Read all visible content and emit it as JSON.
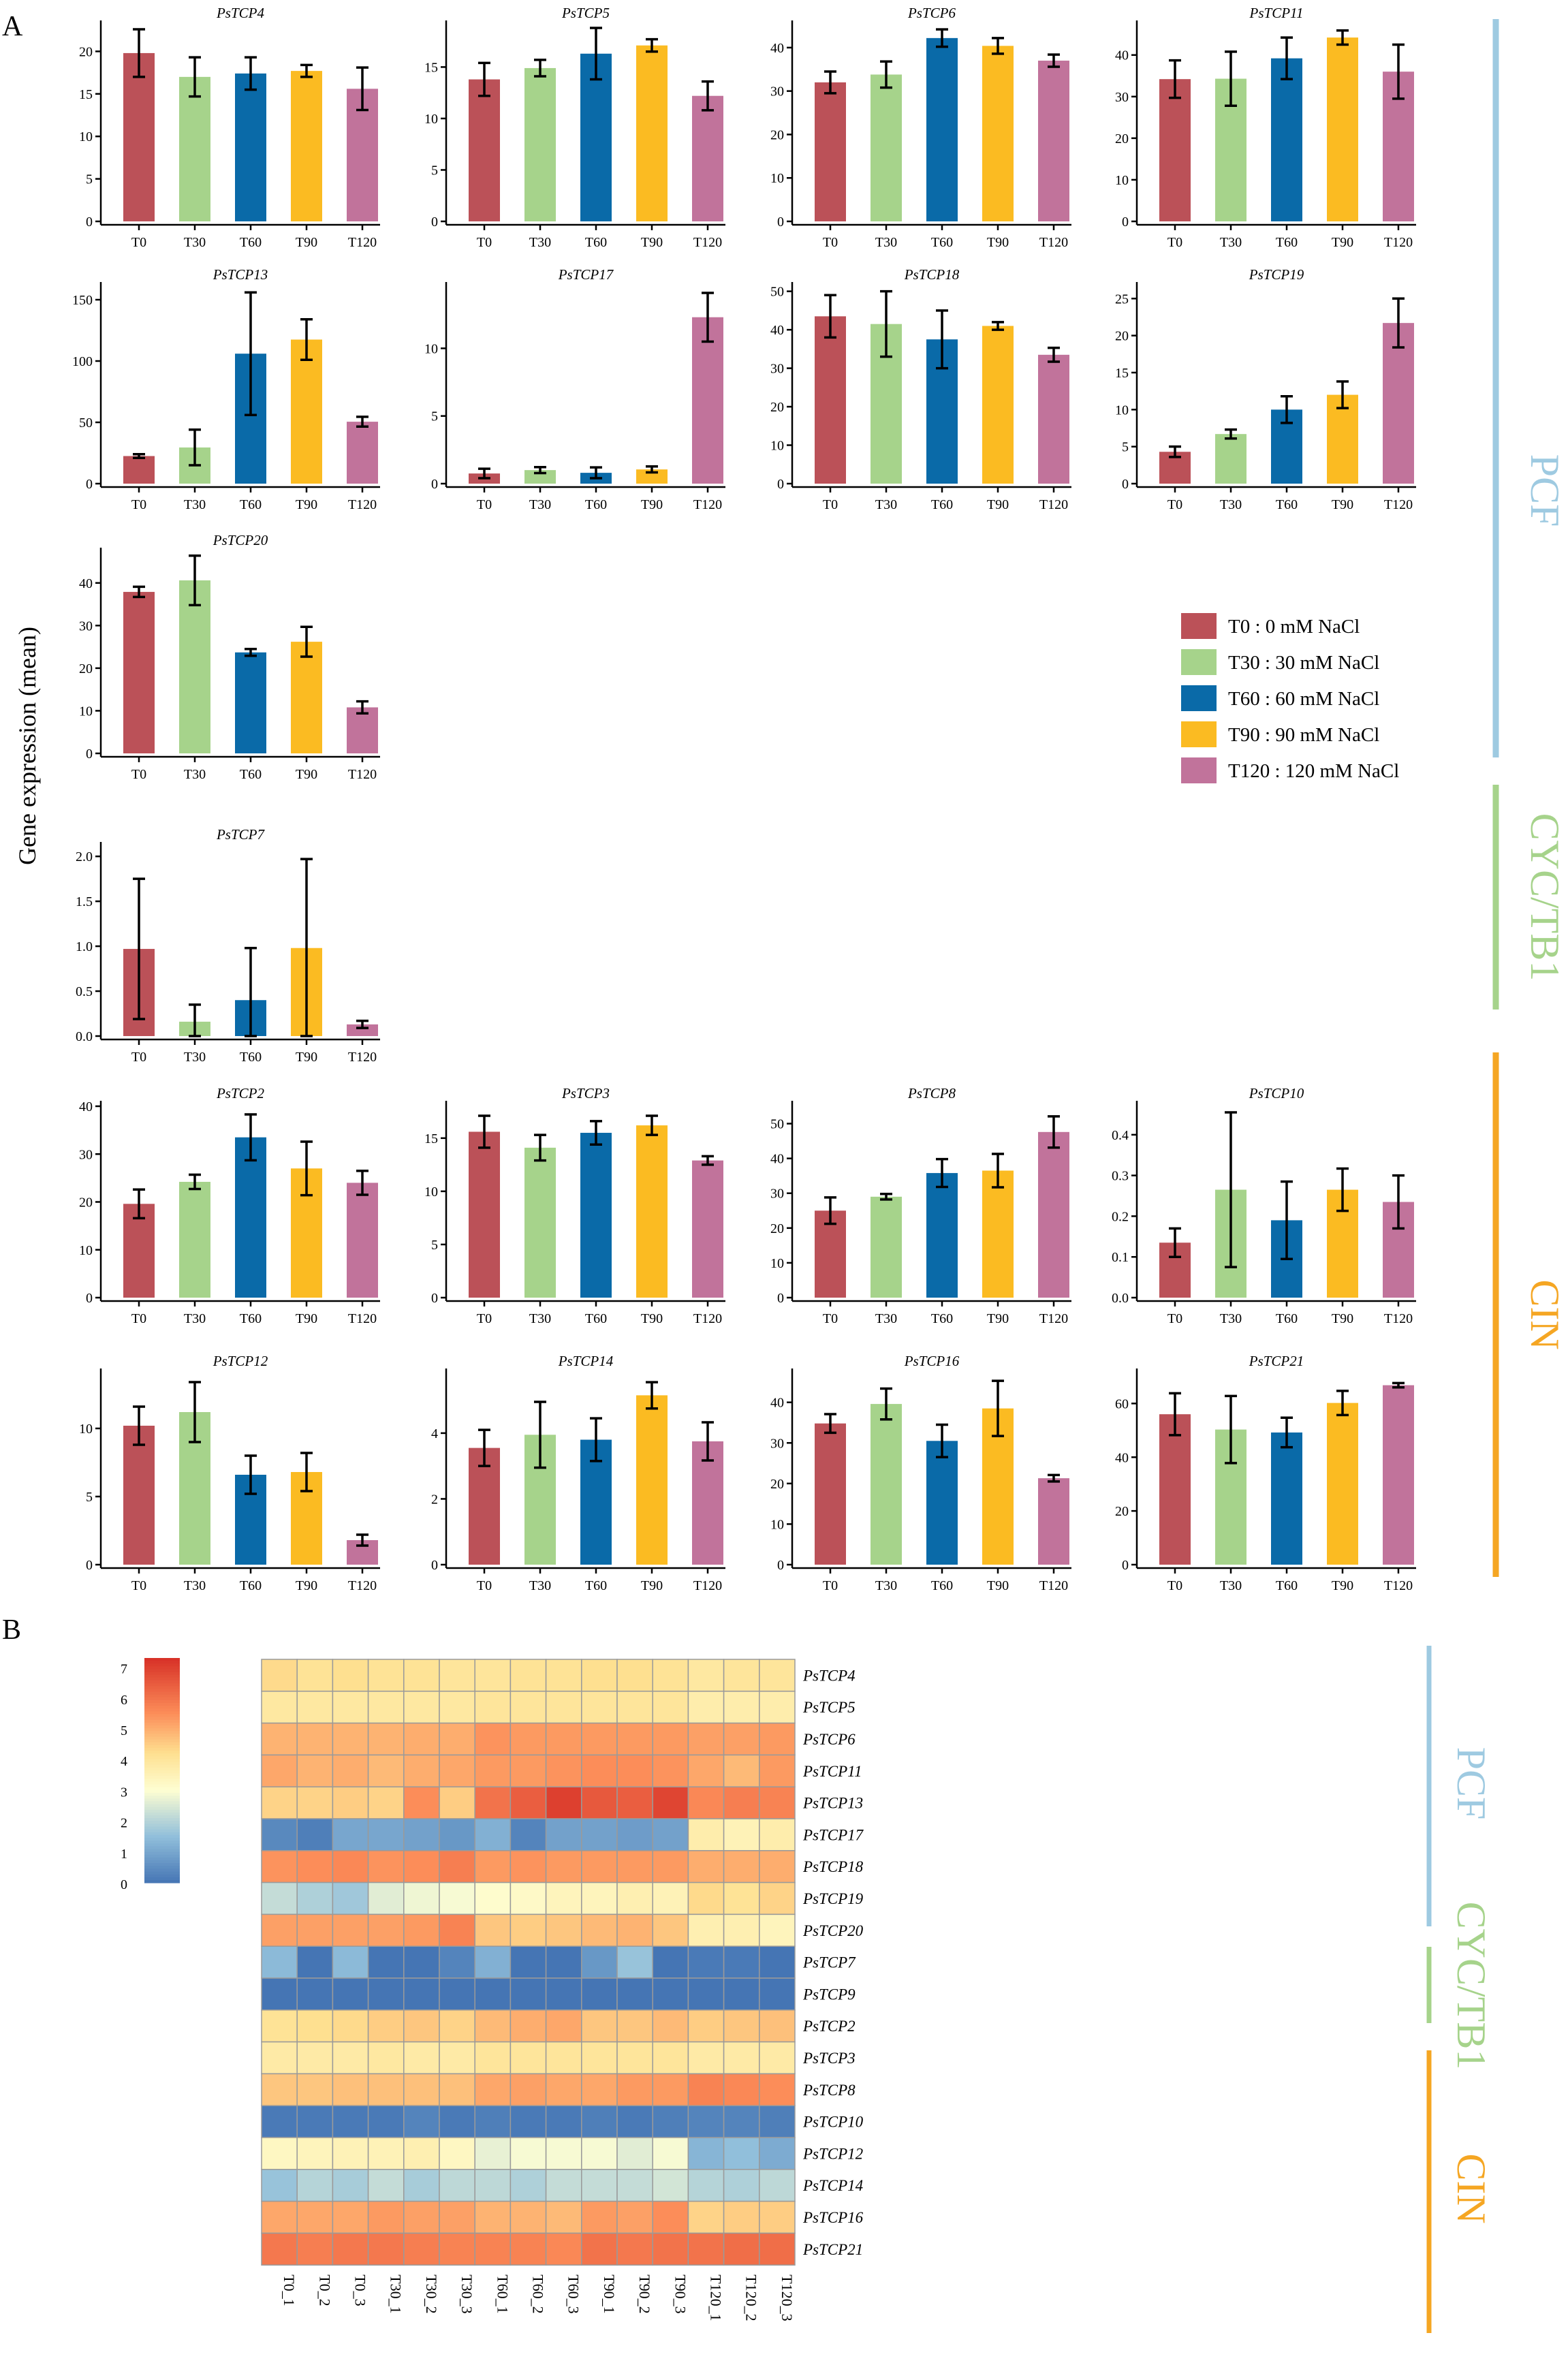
{
  "panel_labels": {
    "a": "A",
    "b": "B"
  },
  "y_axis_label": "Gene expression (mean)",
  "colors": {
    "T0": "#bb5158",
    "T30": "#a6d38b",
    "T60": "#0a6aa8",
    "T90": "#fbbb22",
    "T120": "#c1739b",
    "PCF": "#9ecae1",
    "CYC/TB1": "#a6d38b",
    "CIN": "#f5a623"
  },
  "legend": [
    {
      "key": "T0",
      "label": "T0 : 0 mM NaCl"
    },
    {
      "key": "T30",
      "label": "T30 : 30 mM NaCl"
    },
    {
      "key": "T60",
      "label": "T60 : 60 mM NaCl"
    },
    {
      "key": "T90",
      "label": "T90 : 90 mM NaCl"
    },
    {
      "key": "T120",
      "label": "T120 : 120 mM NaCl"
    }
  ],
  "groups_a": [
    {
      "name": "PCF",
      "color": "#9ecae1"
    },
    {
      "name": "CYC/TB1",
      "color": "#a6d38b"
    },
    {
      "name": "CIN",
      "color": "#f5a623"
    }
  ],
  "groups_b": [
    {
      "name": "PCF",
      "color": "#9ecae1"
    },
    {
      "name": "CYC/TB1",
      "color": "#a6d38b"
    },
    {
      "name": "CIN",
      "color": "#f5a623"
    }
  ],
  "chart_data": [
    {
      "type": "bar",
      "title": "PsTCP4",
      "categories": [
        "T0",
        "T30",
        "T60",
        "T90",
        "T120"
      ],
      "values": [
        19.8,
        17.0,
        17.4,
        17.7,
        15.6
      ],
      "errors": [
        2.8,
        2.3,
        1.9,
        0.7,
        2.5
      ],
      "ylim": [
        0,
        23
      ],
      "yticks": [
        "0",
        "5",
        "10",
        "15",
        "20"
      ]
    },
    {
      "type": "bar",
      "title": "PsTCP5",
      "categories": [
        "T0",
        "T30",
        "T60",
        "T90",
        "T120"
      ],
      "values": [
        13.8,
        14.9,
        16.3,
        17.1,
        12.2
      ],
      "errors": [
        1.6,
        0.8,
        2.5,
        0.6,
        1.4
      ],
      "ylim": [
        0,
        19
      ],
      "yticks": [
        "0",
        "5",
        "10",
        "15"
      ]
    },
    {
      "type": "bar",
      "title": "PsTCP6",
      "categories": [
        "T0",
        "T30",
        "T60",
        "T90",
        "T120"
      ],
      "values": [
        32.0,
        33.8,
        42.2,
        40.4,
        37.0
      ],
      "errors": [
        2.5,
        3.0,
        2.0,
        1.8,
        1.4
      ],
      "ylim": [
        0,
        45
      ],
      "yticks": [
        "0",
        "10",
        "20",
        "30",
        "40"
      ]
    },
    {
      "type": "bar",
      "title": "PsTCP11",
      "categories": [
        "T0",
        "T30",
        "T60",
        "T90",
        "T120"
      ],
      "values": [
        34.2,
        34.3,
        39.2,
        44.2,
        36.0
      ],
      "errors": [
        4.5,
        6.5,
        5.0,
        1.7,
        6.5
      ],
      "ylim": [
        0,
        47
      ],
      "yticks": [
        "0",
        "10",
        "20",
        "30",
        "40"
      ]
    },
    {
      "type": "bar",
      "title": "PsTCP13",
      "categories": [
        "T0",
        "T30",
        "T60",
        "T90",
        "T120"
      ],
      "values": [
        22.5,
        29.5,
        106.0,
        117.5,
        50.5
      ],
      "errors": [
        1.5,
        14.5,
        50.0,
        16.5,
        4.0
      ],
      "ylim": [
        0,
        160
      ],
      "yticks": [
        "0",
        "50",
        "100",
        "150"
      ]
    },
    {
      "type": "bar",
      "title": "PsTCP17",
      "categories": [
        "T0",
        "T30",
        "T60",
        "T90",
        "T120"
      ],
      "values": [
        0.75,
        1.0,
        0.8,
        1.05,
        12.3
      ],
      "errors": [
        0.35,
        0.22,
        0.4,
        0.22,
        1.8
      ],
      "ylim": [
        0,
        14.5
      ],
      "yticks": [
        "0",
        "5",
        "10"
      ]
    },
    {
      "type": "bar",
      "title": "PsTCP18",
      "categories": [
        "T0",
        "T30",
        "T60",
        "T90",
        "T120"
      ],
      "values": [
        43.5,
        41.5,
        37.5,
        41.0,
        33.5
      ],
      "errors": [
        5.5,
        8.5,
        7.5,
        1.0,
        1.8
      ],
      "ylim": [
        0,
        51
      ],
      "yticks": [
        "0",
        "10",
        "20",
        "30",
        "40",
        "50"
      ]
    },
    {
      "type": "bar",
      "title": "PsTCP19",
      "categories": [
        "T0",
        "T30",
        "T60",
        "T90",
        "T120"
      ],
      "values": [
        4.3,
        6.7,
        10.0,
        12.0,
        21.7
      ],
      "errors": [
        0.7,
        0.6,
        1.8,
        1.8,
        3.3
      ],
      "ylim": [
        0,
        26.5
      ],
      "yticks": [
        "0",
        "5",
        "10",
        "15",
        "20",
        "25"
      ]
    },
    {
      "type": "bar",
      "title": "PsTCP20",
      "categories": [
        "T0",
        "T30",
        "T60",
        "T90",
        "T120"
      ],
      "values": [
        37.9,
        40.6,
        23.7,
        26.2,
        10.8
      ],
      "errors": [
        1.2,
        5.8,
        0.8,
        3.5,
        1.4
      ],
      "ylim": [
        0,
        47
      ],
      "yticks": [
        "0",
        "10",
        "20",
        "30",
        "40"
      ]
    },
    {
      "type": "bar",
      "title": "PsTCP7",
      "categories": [
        "T0",
        "T30",
        "T60",
        "T90",
        "T120"
      ],
      "values": [
        0.97,
        0.16,
        0.4,
        0.98,
        0.13
      ],
      "errors": [
        0.78,
        0.19,
        0.58,
        0.99,
        0.04
      ],
      "ylim": [
        0,
        2.1
      ],
      "yticks": [
        "0.0",
        "0.5",
        "1.0",
        "1.5",
        "2.0"
      ]
    },
    {
      "type": "bar",
      "title": "PsTCP2",
      "categories": [
        "T0",
        "T30",
        "T60",
        "T90",
        "T120"
      ],
      "values": [
        19.6,
        24.2,
        33.5,
        27.0,
        24.0
      ],
      "errors": [
        3.0,
        1.5,
        4.8,
        5.6,
        2.5
      ],
      "ylim": [
        0,
        40
      ],
      "yticks": [
        "0",
        "10",
        "20",
        "30",
        "40"
      ]
    },
    {
      "type": "bar",
      "title": "PsTCP3",
      "categories": [
        "T0",
        "T30",
        "T60",
        "T90",
        "T120"
      ],
      "values": [
        15.6,
        14.1,
        15.5,
        16.2,
        12.9
      ],
      "errors": [
        1.5,
        1.2,
        1.1,
        0.9,
        0.4
      ],
      "ylim": [
        0,
        18
      ],
      "yticks": [
        "0",
        "5",
        "10",
        "15"
      ]
    },
    {
      "type": "bar",
      "title": "PsTCP8",
      "categories": [
        "T0",
        "T30",
        "T60",
        "T90",
        "T120"
      ],
      "values": [
        25.0,
        29.0,
        35.8,
        36.5,
        47.6
      ],
      "errors": [
        3.8,
        0.8,
        4.0,
        4.8,
        4.5
      ],
      "ylim": [
        0,
        55
      ],
      "yticks": [
        "0",
        "10",
        "20",
        "30",
        "40",
        "50"
      ]
    },
    {
      "type": "bar",
      "title": "PsTCP10",
      "categories": [
        "T0",
        "T30",
        "T60",
        "T90",
        "T120"
      ],
      "values": [
        0.135,
        0.265,
        0.19,
        0.265,
        0.235
      ],
      "errors": [
        0.035,
        0.19,
        0.095,
        0.052,
        0.065
      ],
      "ylim": [
        0,
        0.47
      ],
      "yticks": [
        "0.0",
        "0.1",
        "0.2",
        "0.3",
        "0.4"
      ]
    },
    {
      "type": "bar",
      "title": "PsTCP12",
      "categories": [
        "T0",
        "T30",
        "T60",
        "T90",
        "T120"
      ],
      "values": [
        10.2,
        11.2,
        6.6,
        6.8,
        1.8
      ],
      "errors": [
        1.4,
        2.2,
        1.4,
        1.4,
        0.4
      ],
      "ylim": [
        0,
        14
      ],
      "yticks": [
        "0",
        "5",
        "10"
      ]
    },
    {
      "type": "bar",
      "title": "PsTCP14",
      "categories": [
        "T0",
        "T30",
        "T60",
        "T90",
        "T120"
      ],
      "values": [
        3.55,
        3.95,
        3.8,
        5.15,
        3.75
      ],
      "errors": [
        0.55,
        1.0,
        0.65,
        0.4,
        0.58
      ],
      "ylim": [
        0,
        5.8
      ],
      "yticks": [
        "0",
        "2",
        "4"
      ]
    },
    {
      "type": "bar",
      "title": "PsTCP16",
      "categories": [
        "T0",
        "T30",
        "T60",
        "T90",
        "T120"
      ],
      "values": [
        34.8,
        39.6,
        30.5,
        38.5,
        21.3
      ],
      "errors": [
        2.3,
        3.8,
        4.0,
        6.8,
        0.8
      ],
      "ylim": [
        0,
        47
      ],
      "yticks": [
        "0",
        "10",
        "20",
        "30",
        "40"
      ]
    },
    {
      "type": "bar",
      "title": "PsTCP21",
      "categories": [
        "T0",
        "T30",
        "T60",
        "T90",
        "T120"
      ],
      "values": [
        56.0,
        50.3,
        49.2,
        60.2,
        66.8
      ],
      "errors": [
        7.8,
        12.5,
        5.5,
        4.5,
        0.8
      ],
      "ylim": [
        0,
        71
      ],
      "yticks": [
        "0",
        "20",
        "40",
        "60"
      ]
    },
    {
      "type": "heatmap",
      "title": "",
      "rows": [
        "PsTCP4",
        "PsTCP5",
        "PsTCP6",
        "PsTCP11",
        "PsTCP13",
        "PsTCP17",
        "PsTCP18",
        "PsTCP19",
        "PsTCP20",
        "PsTCP7",
        "PsTCP9",
        "PsTCP2",
        "PsTCP3",
        "PsTCP8",
        "PsTCP10",
        "PsTCP12",
        "PsTCP14",
        "PsTCP16",
        "PsTCP21"
      ],
      "columns": [
        "T0_1",
        "T0_2",
        "T0_3",
        "T30_1",
        "T30_2",
        "T30_3",
        "T60_1",
        "T60_2",
        "T60_3",
        "T90_1",
        "T90_2",
        "T90_3",
        "T120_1",
        "T120_2",
        "T120_3"
      ],
      "values": [
        [
          4.3,
          4.1,
          4.2,
          4.1,
          4.1,
          4.0,
          4.0,
          4.1,
          4.1,
          4.2,
          4.2,
          4.1,
          3.9,
          4.0,
          4.0
        ],
        [
          3.9,
          3.9,
          3.9,
          3.9,
          3.9,
          3.9,
          4.0,
          4.0,
          4.0,
          4.0,
          4.0,
          4.0,
          3.7,
          3.7,
          3.7
        ],
        [
          4.9,
          4.9,
          4.9,
          4.9,
          5.0,
          5.0,
          5.4,
          5.3,
          5.3,
          5.3,
          5.3,
          5.3,
          5.2,
          5.2,
          5.3
        ],
        [
          5.1,
          4.9,
          5.0,
          4.8,
          5.0,
          5.1,
          5.3,
          5.3,
          5.4,
          5.5,
          5.5,
          5.4,
          5.1,
          4.8,
          5.3
        ],
        [
          4.4,
          4.4,
          4.5,
          4.4,
          5.5,
          4.5,
          6.0,
          6.4,
          7.0,
          6.5,
          6.4,
          6.9,
          5.6,
          5.8,
          5.7
        ],
        [
          0.4,
          0.2,
          1.0,
          1.0,
          0.9,
          0.7,
          1.2,
          0.3,
          0.9,
          0.9,
          0.8,
          0.9,
          3.7,
          3.5,
          3.7
        ],
        [
          5.4,
          5.5,
          5.6,
          5.4,
          5.5,
          5.8,
          5.3,
          5.4,
          5.3,
          5.3,
          5.3,
          5.3,
          5.0,
          5.0,
          5.0
        ],
        [
          2.2,
          1.9,
          1.7,
          2.6,
          2.8,
          2.9,
          3.1,
          3.2,
          3.4,
          3.4,
          3.6,
          3.5,
          4.3,
          4.1,
          4.4
        ],
        [
          5.2,
          5.2,
          5.2,
          5.2,
          5.3,
          5.7,
          4.6,
          4.5,
          4.6,
          4.8,
          4.9,
          4.6,
          3.6,
          3.6,
          3.4
        ],
        [
          1.4,
          0.0,
          1.4,
          0.0,
          0.0,
          0.3,
          1.2,
          0.0,
          0.0,
          0.7,
          1.6,
          0.0,
          0.1,
          0.1,
          0.0
        ],
        [
          0.0,
          0.0,
          0.0,
          0.0,
          0.0,
          0.0,
          0.0,
          0.0,
          0.0,
          0.0,
          0.0,
          0.0,
          0.0,
          0.0,
          0.0
        ],
        [
          4.1,
          4.2,
          4.3,
          4.5,
          4.6,
          4.4,
          4.8,
          5.0,
          5.1,
          4.6,
          4.6,
          4.8,
          4.5,
          4.6,
          4.7
        ],
        [
          3.8,
          3.8,
          3.8,
          3.9,
          3.8,
          3.8,
          4.0,
          4.0,
          4.0,
          4.0,
          4.0,
          4.0,
          3.8,
          3.8,
          3.8
        ],
        [
          4.6,
          4.6,
          4.7,
          4.7,
          4.7,
          4.7,
          5.1,
          5.2,
          5.1,
          5.1,
          5.3,
          5.3,
          5.7,
          5.6,
          5.5
        ],
        [
          0.1,
          0.1,
          0.1,
          0.1,
          0.3,
          0.1,
          0.2,
          0.1,
          0.1,
          0.2,
          0.1,
          0.2,
          0.3,
          0.3,
          0.2
        ],
        [
          3.3,
          3.4,
          3.5,
          3.5,
          3.6,
          3.3,
          2.7,
          2.9,
          2.9,
          2.9,
          2.6,
          2.9,
          1.3,
          1.5,
          1.1
        ],
        [
          1.6,
          2.0,
          1.8,
          2.2,
          1.8,
          2.1,
          2.1,
          1.9,
          2.2,
          2.2,
          2.2,
          2.4,
          2.0,
          1.9,
          2.1
        ],
        [
          5.1,
          5.1,
          5.1,
          5.3,
          5.2,
          5.2,
          4.9,
          4.9,
          4.8,
          5.3,
          5.2,
          5.5,
          4.4,
          4.5,
          4.5
        ],
        [
          5.9,
          5.8,
          5.9,
          5.9,
          5.8,
          5.7,
          5.7,
          5.7,
          5.6,
          6.0,
          5.9,
          6.0,
          6.0,
          6.1,
          6.1
        ]
      ],
      "colorbar": {
        "min": 0,
        "max": 7.3,
        "ticks": [
          "0",
          "1",
          "2",
          "3",
          "4",
          "5",
          "6",
          "7"
        ]
      }
    }
  ]
}
